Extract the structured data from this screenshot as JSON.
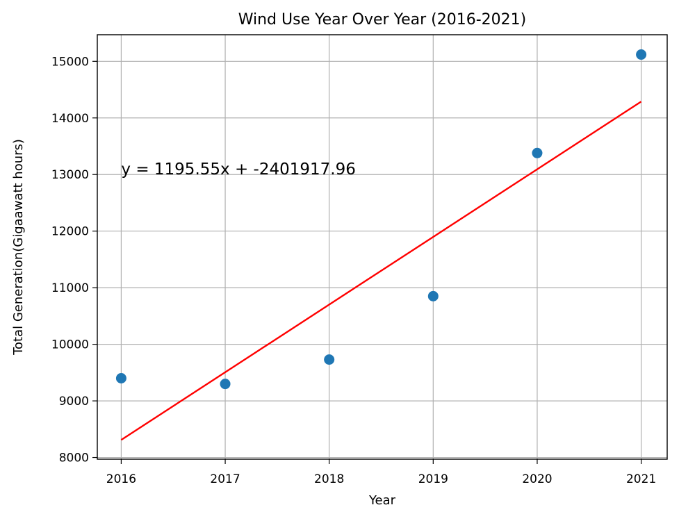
{
  "chart_data": {
    "type": "scatter",
    "title": "Wind Use Year Over Year (2016-2021)",
    "xlabel": "Year",
    "ylabel": "Total Generation(Gigaawatt hours)",
    "xlim": [
      2015.77,
      2021.25
    ],
    "ylim": [
      7970,
      15470
    ],
    "x_ticks": [
      2016,
      2017,
      2018,
      2019,
      2020,
      2021
    ],
    "y_ticks": [
      8000,
      9000,
      10000,
      11000,
      12000,
      13000,
      14000,
      15000
    ],
    "grid": true,
    "points": {
      "x": [
        2016,
        2017,
        2018,
        2019,
        2020,
        2021
      ],
      "y": [
        9400,
        9300,
        9730,
        10850,
        13380,
        15120
      ],
      "color": "#1f77b4"
    },
    "regression": {
      "slope": 1195.55,
      "intercept": -2401917.96,
      "x_range": [
        2016,
        2021
      ],
      "color": "#ff0000"
    },
    "annotation": {
      "text": "y = 1195.55x + -2401917.96",
      "x": 2016,
      "y": 13000
    }
  }
}
